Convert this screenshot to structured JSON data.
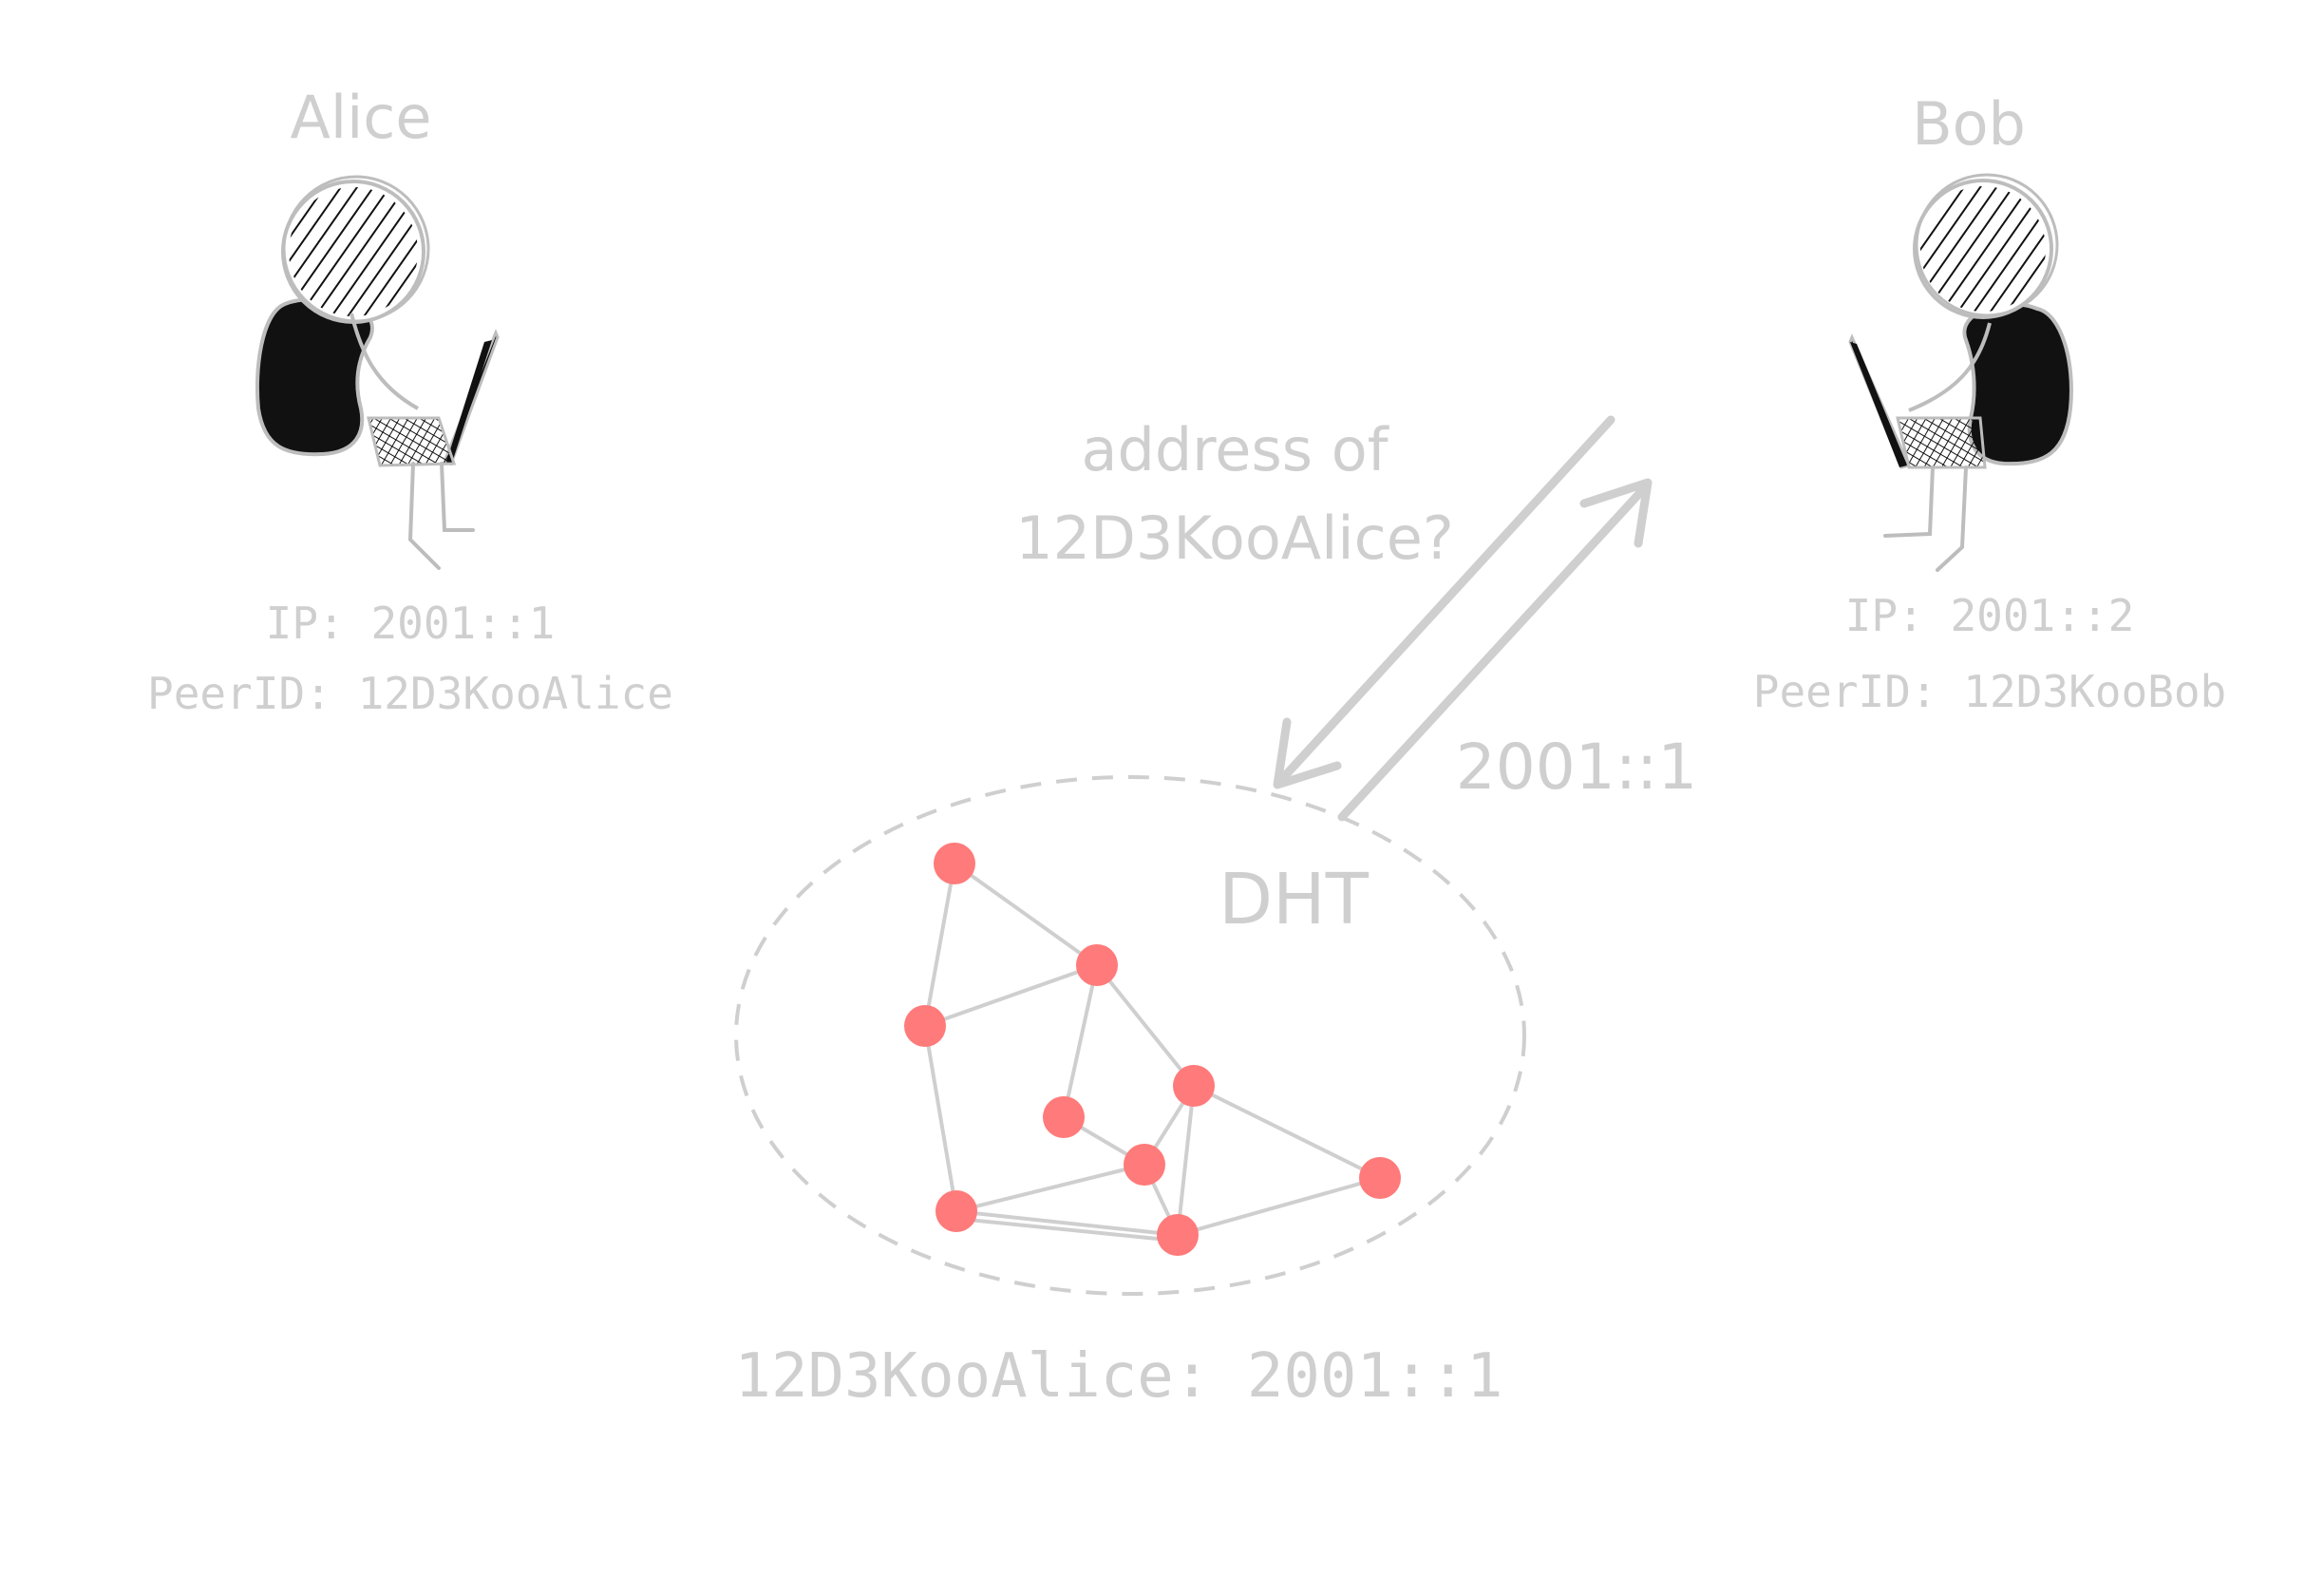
{
  "alice": {
    "name": "Alice",
    "ip": "IP: 2001::1",
    "peer_id": "PeerID: 12D3KooAlice"
  },
  "bob": {
    "name": "Bob",
    "ip": "IP: 2001::2",
    "peer_id": "PeerID: 12D3KooBob"
  },
  "query": {
    "line1": "address of",
    "line2": "12D3KooAlice?"
  },
  "response": "2001::1",
  "dht": {
    "label": "DHT",
    "record": "12D3KooAlice: 2001::1",
    "node_color": "#ff7a7a",
    "edge_color": "#cfcfcf",
    "nodes": [
      "n1",
      "n2",
      "n3",
      "n4",
      "n5",
      "n6",
      "n7",
      "n8",
      "n9"
    ]
  },
  "colors": {
    "text": "#cfcfcf",
    "figure_fill": "#111111",
    "figure_stroke": "#bdbdbd"
  }
}
